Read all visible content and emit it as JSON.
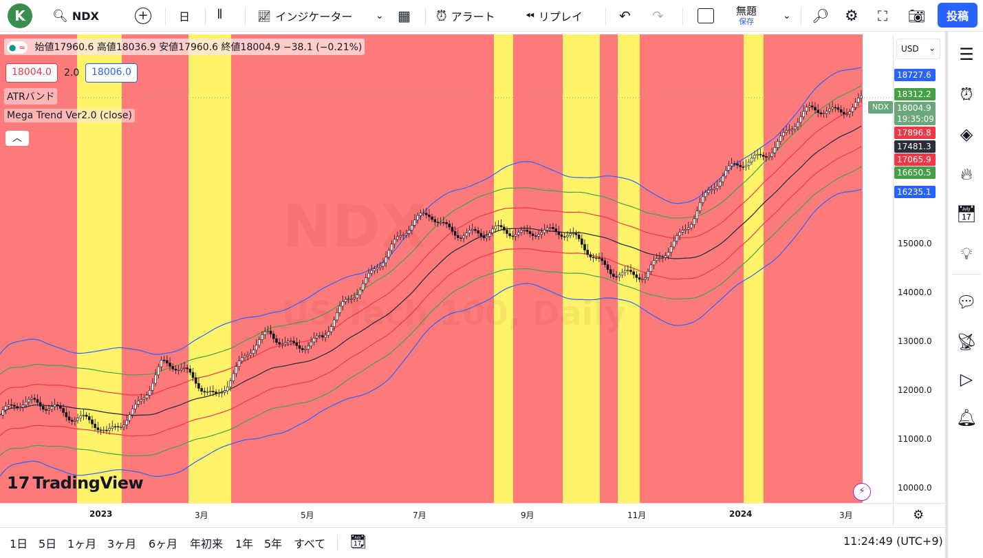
{
  "topbar": {
    "avatar_letter": "K",
    "symbol": "NDX",
    "interval": "日",
    "indicators_label": "インジケーター",
    "alert_label": "アラート",
    "replay_label": "リプレイ",
    "layout_name": "無題",
    "save_label": "保存",
    "publish_label": "投稿"
  },
  "legend": {
    "open_label": "始値",
    "open": "17960.6",
    "high_label": "高値",
    "high": "18036.9",
    "low_label": "安値",
    "low": "17960.6",
    "close_label": "終値",
    "close": "18004.9",
    "change": "−38.1 (−0.21%)",
    "sell_price": "18004.0",
    "spread": "2.0",
    "buy_price": "18006.0",
    "indicator1": "ATRバンド",
    "indicator2": "Mega Trend Ver2.0 (close)",
    "collapse_icon": "chevron-up-icon"
  },
  "watermark": {
    "symbol": "NDX",
    "description": "US Tech 100, Daily"
  },
  "price_axis": {
    "currency": "USD",
    "ticks": [
      "16000.0",
      "15000.0",
      "14000.0",
      "13000.0",
      "12000.0",
      "11000.0",
      "10000.0"
    ],
    "tags": [
      {
        "value": "18727.6",
        "color": "#2962ff"
      },
      {
        "value": "18312.2",
        "color": "#43a047"
      },
      {
        "value": "18004.9",
        "color": "#6aa77a"
      },
      {
        "value": "19:35:09",
        "color": "#6aa77a"
      },
      {
        "value": "17896.8",
        "color": "#f23645"
      },
      {
        "value": "17481.3",
        "color": "#2a2e39"
      },
      {
        "value": "17065.9",
        "color": "#f23645"
      },
      {
        "value": "16650.5",
        "color": "#43a047"
      },
      {
        "value": "16235.1",
        "color": "#2962ff"
      }
    ],
    "symbol_tag": "NDX"
  },
  "time_axis": {
    "labels": [
      "2023",
      "3月",
      "5月",
      "7月",
      "9月",
      "11月",
      "2024",
      "3月"
    ]
  },
  "bottombar": {
    "ranges": [
      "1日",
      "5日",
      "1ヶ月",
      "3ヶ月",
      "6ヶ月",
      "年初来",
      "1年",
      "5年",
      "すべて"
    ],
    "clock": "11:24:49 (UTC+9)"
  },
  "brand": {
    "logo_text": "TradingView"
  },
  "colors": {
    "red_zone": "#ff7b7b",
    "yellow_zone": "#fff36a",
    "upper_band": "#2962ff",
    "mid_upper": "#43a047",
    "inner": "#f23645",
    "center": "#2a2e39"
  },
  "chart_data": {
    "type": "candlestick",
    "symbol": "NDX",
    "ylim": [
      9700,
      19300
    ],
    "x_labels": [
      "2023",
      "3月",
      "5月",
      "7月",
      "9月",
      "11月",
      "2024",
      "3月"
    ],
    "close_path": [
      [
        "2022-11",
        11500
      ],
      [
        "2022-12",
        11800
      ],
      [
        "2023-01",
        11000
      ],
      [
        "2023-02",
        12500
      ],
      [
        "2023-03",
        12000
      ],
      [
        "2023-04",
        13100
      ],
      [
        "2023-05",
        13000
      ],
      [
        "2023-06",
        14700
      ],
      [
        "2023-07",
        15600
      ],
      [
        "2023-08",
        15100
      ],
      [
        "2023-09",
        15400
      ],
      [
        "2023-10",
        14800
      ],
      [
        "2023-11",
        14200
      ],
      [
        "2023-12",
        15900
      ],
      [
        "2024-01",
        16800
      ],
      [
        "2024-02",
        17600
      ],
      [
        "2024-03",
        18004.9
      ]
    ],
    "series": [
      {
        "name": "upper_atr_2",
        "color": "#2962ff"
      },
      {
        "name": "upper_atr_1",
        "color": "#43a047"
      },
      {
        "name": "upper_inner",
        "color": "#f23645"
      },
      {
        "name": "center",
        "color": "#2a2e39"
      },
      {
        "name": "lower_inner",
        "color": "#f23645"
      },
      {
        "name": "lower_atr_1",
        "color": "#43a047"
      },
      {
        "name": "lower_atr_2",
        "color": "#2962ff"
      }
    ]
  }
}
